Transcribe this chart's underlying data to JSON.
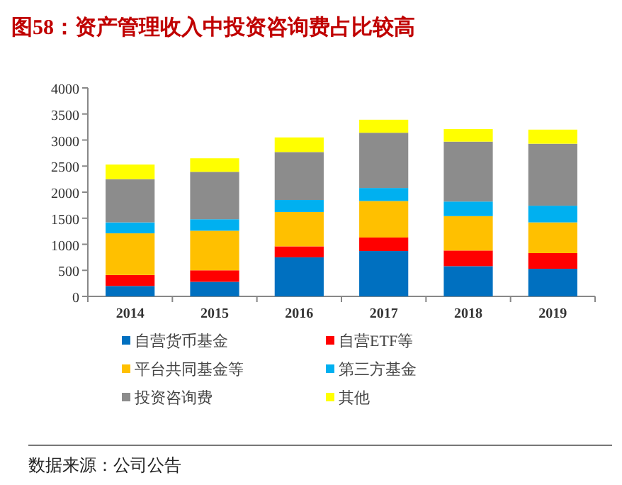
{
  "chart_data": {
    "type": "bar",
    "stacked": true,
    "title": "图58：资产管理收入中投资咨询费占比较高",
    "categories": [
      "2014",
      "2015",
      "2016",
      "2017",
      "2018",
      "2019"
    ],
    "series": [
      {
        "name": "自营货币基金",
        "color": "#0070c0",
        "values": [
          200,
          280,
          750,
          870,
          580,
          530
        ]
      },
      {
        "name": "自营ETF等",
        "color": "#ff0000",
        "values": [
          210,
          220,
          210,
          260,
          300,
          300
        ]
      },
      {
        "name": "平台共同基金等",
        "color": "#ffc000",
        "values": [
          800,
          760,
          660,
          700,
          660,
          590
        ]
      },
      {
        "name": "第三方基金",
        "color": "#00b0f0",
        "values": [
          210,
          220,
          230,
          250,
          280,
          320
        ]
      },
      {
        "name": "投资咨询费",
        "color": "#8c8c8c",
        "values": [
          830,
          910,
          920,
          1060,
          1150,
          1190
        ]
      },
      {
        "name": "其他",
        "color": "#ffff00",
        "values": [
          280,
          260,
          280,
          250,
          240,
          270
        ]
      }
    ],
    "ylim": [
      0,
      4000
    ],
    "yticks": [
      0,
      500,
      1000,
      1500,
      2000,
      2500,
      3000,
      3500,
      4000
    ],
    "grid": false,
    "legend": "bottom",
    "annotations": [
      "数据来源：公司公告"
    ]
  }
}
